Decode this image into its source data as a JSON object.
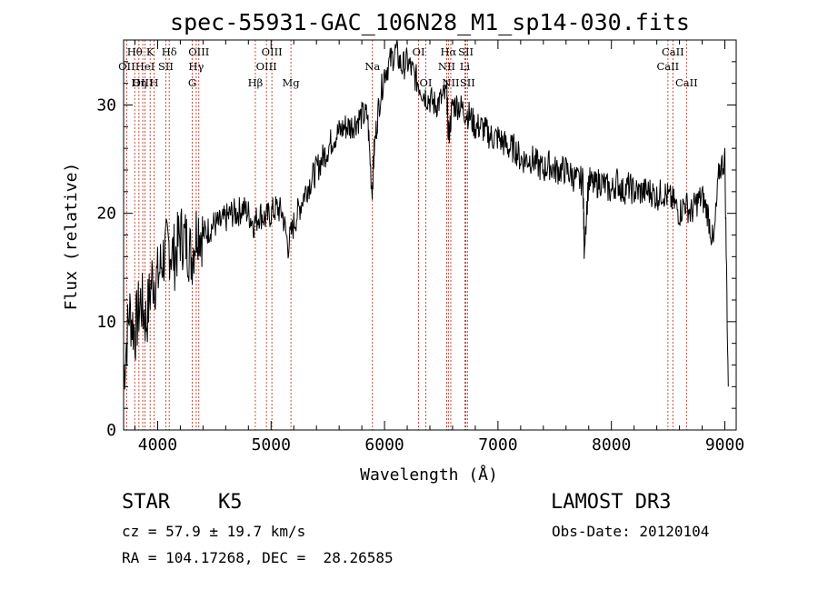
{
  "chart_data": {
    "type": "line",
    "title": "spec-55931-GAC_106N28_M1_sp14-030.fits",
    "xlabel": "Wavelength (Å)",
    "ylabel": "Flux (relative)",
    "xlim": [
      3700,
      9100
    ],
    "ylim": [
      0,
      36
    ],
    "xticks": [
      4000,
      5000,
      6000,
      7000,
      8000,
      9000
    ],
    "yticks": [
      0,
      10,
      20,
      30
    ],
    "series": [
      {
        "name": "flux",
        "color": "#000000",
        "x": [
          3700,
          3750,
          3800,
          3850,
          3900,
          3950,
          4000,
          4050,
          4100,
          4150,
          4200,
          4250,
          4300,
          4350,
          4400,
          4450,
          4500,
          4550,
          4600,
          4650,
          4700,
          4750,
          4800,
          4850,
          4900,
          4950,
          5000,
          5050,
          5100,
          5150,
          5200,
          5250,
          5300,
          5350,
          5400,
          5450,
          5500,
          5550,
          5600,
          5650,
          5700,
          5750,
          5800,
          5850,
          5890,
          5910,
          5950,
          6000,
          6050,
          6100,
          6150,
          6200,
          6250,
          6300,
          6350,
          6400,
          6450,
          6500,
          6550,
          6563,
          6600,
          6650,
          6700,
          6750,
          6800,
          6850,
          6900,
          6950,
          7000,
          7050,
          7100,
          7150,
          7200,
          7250,
          7300,
          7350,
          7400,
          7450,
          7500,
          7550,
          7600,
          7650,
          7700,
          7750,
          7760,
          7800,
          7850,
          7900,
          7950,
          8000,
          8050,
          8100,
          8150,
          8200,
          8250,
          8300,
          8350,
          8400,
          8450,
          8500,
          8550,
          8600,
          8650,
          8700,
          8750,
          8800,
          8850,
          8900,
          8950,
          9000,
          9030
        ],
        "values": [
          5,
          11,
          9,
          12,
          10,
          14,
          14,
          16,
          17,
          16,
          18,
          17.5,
          16,
          19,
          18,
          18.5,
          19,
          19,
          19.5,
          20,
          20,
          20.5,
          20,
          19,
          20,
          19.5,
          20,
          20.5,
          20,
          17,
          19,
          20.5,
          22,
          23,
          24,
          25,
          26,
          27,
          27.5,
          28,
          28,
          28.5,
          29,
          29,
          22,
          26,
          30,
          33,
          34,
          35,
          33.5,
          34,
          33,
          32,
          31,
          30.5,
          30,
          30.5,
          31,
          27,
          30,
          30,
          29.5,
          29,
          28,
          28,
          27.5,
          27,
          27,
          26.5,
          26,
          26,
          25,
          25,
          25,
          24.5,
          24,
          24.5,
          24,
          24,
          24,
          23.5,
          23,
          23,
          17,
          23,
          22.5,
          23,
          22.5,
          22,
          23,
          22,
          22.5,
          22,
          22,
          22,
          22,
          21.5,
          22,
          21.5,
          21,
          20,
          21,
          20,
          21,
          21.5,
          20,
          17,
          24,
          25,
          4
        ]
      }
    ],
    "emission_lines": [
      {
        "label": "Hθ",
        "wavelength": 3798,
        "row": 1
      },
      {
        "label": "OII",
        "wavelength": 3727,
        "row": 2
      },
      {
        "label": "OIII",
        "wavelength": 3869,
        "row": 3
      },
      {
        "label": "K",
        "wavelength": 3934,
        "row": 1
      },
      {
        "label": "HeI",
        "wavelength": 3889,
        "row": 2
      },
      {
        "label": "Hη",
        "wavelength": 3835,
        "row": 3
      },
      {
        "label": "H",
        "wavelength": 3969,
        "row": 3
      },
      {
        "label": "SII",
        "wavelength": 4072,
        "row": 2
      },
      {
        "label": "Hδ",
        "wavelength": 4102,
        "row": 1
      },
      {
        "label": "OIII",
        "wavelength": 4363,
        "row": 1
      },
      {
        "label": "Hγ",
        "wavelength": 4340,
        "row": 2
      },
      {
        "label": "G",
        "wavelength": 4305,
        "row": 3
      },
      {
        "label": "Hβ",
        "wavelength": 4861,
        "row": 3
      },
      {
        "label": "OIII",
        "wavelength": 5007,
        "row": 1
      },
      {
        "label": "OIII",
        "wavelength": 4959,
        "row": 2
      },
      {
        "label": "Mg",
        "wavelength": 5175,
        "row": 3
      },
      {
        "label": "Na",
        "wavelength": 5893,
        "row": 2
      },
      {
        "label": "OI",
        "wavelength": 6300,
        "row": 1
      },
      {
        "label": "OI",
        "wavelength": 6364,
        "row": 3
      },
      {
        "label": "Hα",
        "wavelength": 6563,
        "row": 1
      },
      {
        "label": "NII",
        "wavelength": 6548,
        "row": 2
      },
      {
        "label": "NII",
        "wavelength": 6584,
        "row": 3
      },
      {
        "label": "SII",
        "wavelength": 6717,
        "row": 1
      },
      {
        "label": "Li",
        "wavelength": 6708,
        "row": 2
      },
      {
        "label": "SII",
        "wavelength": 6731,
        "row": 3
      },
      {
        "label": "CaII",
        "wavelength": 8542,
        "row": 1
      },
      {
        "label": "CaII",
        "wavelength": 8498,
        "row": 2
      },
      {
        "label": "CaII",
        "wavelength": 8662,
        "row": 3
      }
    ],
    "colors": {
      "axes": "#000000",
      "line_markers": "#c0392b"
    }
  },
  "info": {
    "class_label": "STAR",
    "subclass": "K5",
    "survey": "LAMOST DR3",
    "redshift": "cz = 57.9 ± 19.7 km/s",
    "obs_date": "Obs-Date: 20120104",
    "coords": "RA = 104.17268, DEC =  28.26585"
  }
}
